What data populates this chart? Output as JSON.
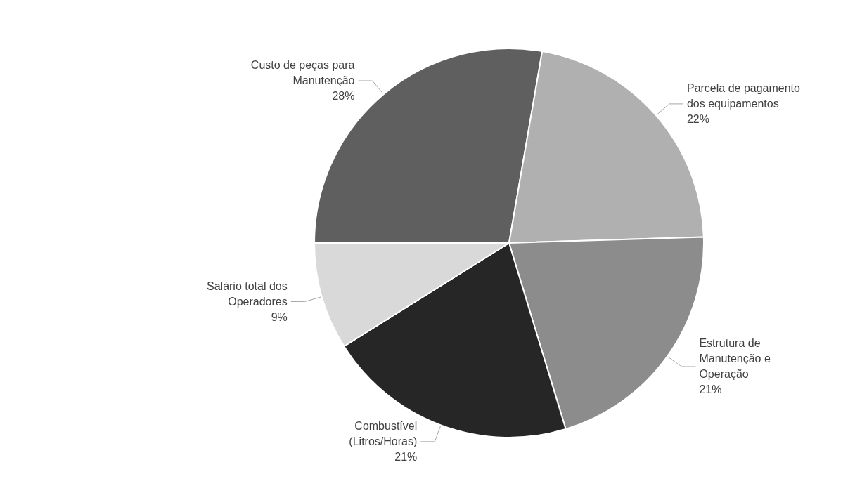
{
  "chart_data": {
    "type": "pie",
    "categories": [
      "Custo de peças para\nManutenção",
      "Parcela de pagamento\ndos equipamentos",
      "Estrutura de\nManutenção e\nOperação",
      "Combustível\n(Litros/Horas)",
      "Salário total dos\nOperadores"
    ],
    "values": [
      28,
      22,
      21,
      21,
      9
    ],
    "colors": [
      "#5f5f5f",
      "#b0b0b0",
      "#8c8c8c",
      "#262626",
      "#d9d9d9"
    ],
    "value_labels": [
      "28%",
      "22%",
      "21%",
      "21%",
      "9%"
    ]
  }
}
